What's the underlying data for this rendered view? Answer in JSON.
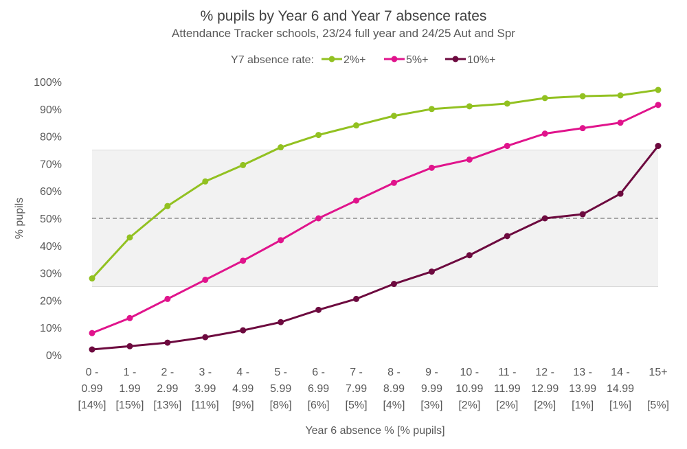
{
  "chart_data": {
    "type": "line",
    "title": "% pupils by Year 6 and Year 7 absence rates",
    "subtitle": "Attendance Tracker schools, 23/24 full year and 24/25 Aut and Spr",
    "legend_title": "Y7 absence rate:",
    "xlabel": "Year 6 absence % [% pupils]",
    "ylabel": "% pupils",
    "ylim": [
      0,
      100
    ],
    "yticks": [
      0,
      10,
      20,
      30,
      40,
      50,
      60,
      70,
      80,
      90,
      100
    ],
    "ytick_labels": [
      "0%",
      "10%",
      "20%",
      "30%",
      "40%",
      "50%",
      "60%",
      "70%",
      "80%",
      "90%",
      "100%"
    ],
    "band": [
      25,
      75
    ],
    "reference_line": 50,
    "categories": [
      [
        "0 -",
        "0.99",
        "[14%]"
      ],
      [
        "1 -",
        "1.99",
        "[15%]"
      ],
      [
        "2 -",
        "2.99",
        "[13%]"
      ],
      [
        "3 -",
        "3.99",
        "[11%]"
      ],
      [
        "4 -",
        "4.99",
        "[9%]"
      ],
      [
        "5 -",
        "5.99",
        "[8%]"
      ],
      [
        "6 -",
        "6.99",
        "[6%]"
      ],
      [
        "7 -",
        "7.99",
        "[5%]"
      ],
      [
        "8 -",
        "8.99",
        "[4%]"
      ],
      [
        "9 -",
        "9.99",
        "[3%]"
      ],
      [
        "10 -",
        "10.99",
        "[2%]"
      ],
      [
        "11 -",
        "11.99",
        "[2%]"
      ],
      [
        "12 -",
        "12.99",
        "[2%]"
      ],
      [
        "13 -",
        "13.99",
        "[1%]"
      ],
      [
        "14 -",
        "14.99",
        "[1%]"
      ],
      [
        "15+",
        "",
        "[5%]"
      ]
    ],
    "series": [
      {
        "name": "2%+",
        "color": "#92c121",
        "values": [
          28,
          43,
          54.5,
          63.5,
          69.5,
          76,
          80.5,
          84,
          87.5,
          90,
          91,
          92,
          94,
          94.7,
          95,
          97
        ]
      },
      {
        "name": "5%+",
        "color": "#e0148c",
        "values": [
          8,
          13.5,
          20.5,
          27.5,
          34.5,
          42,
          50,
          56.5,
          63,
          68.5,
          71.5,
          76.5,
          81,
          83,
          85,
          91.5
        ]
      },
      {
        "name": "10%+",
        "color": "#6d0a3f",
        "values": [
          2,
          3.2,
          4.5,
          6.5,
          9,
          12,
          16.5,
          20.5,
          26,
          30.5,
          36.5,
          43.5,
          50,
          51.5,
          59,
          76.5
        ]
      }
    ]
  }
}
